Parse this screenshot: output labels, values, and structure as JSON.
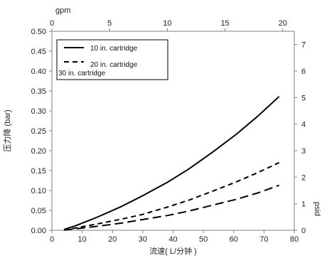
{
  "chart_data": {
    "type": "line",
    "title": "",
    "xlabel": "流速( L/分钟 )",
    "ylabel": "压力降 (bar)",
    "top_xlabel": "gpm",
    "right_ylabel": "psid",
    "xlim": [
      0,
      80
    ],
    "ylim": [
      0,
      0.5
    ],
    "top_xlim": [
      0,
      21
    ],
    "right_ylim": [
      0,
      7.5
    ],
    "x_ticks": [
      "0",
      "10",
      "20",
      "30",
      "40",
      "50",
      "60",
      "70",
      "80"
    ],
    "y_ticks": [
      "0.00",
      "0.05",
      "0.10",
      "0.15",
      "0.20",
      "0.25",
      "0.30",
      "0.35",
      "0.40",
      "0.45",
      "0.50"
    ],
    "top_x_ticks": [
      "0",
      "5",
      "10",
      "15",
      "20"
    ],
    "right_y_ticks": [
      "0",
      "1",
      "2",
      "3",
      "4",
      "5",
      "6",
      "7"
    ],
    "grid": false,
    "legend_position": "top-left",
    "series": [
      {
        "name": "10 in. cartridge",
        "style": "solid",
        "color": "#000000",
        "x": [
          4,
          8,
          15,
          23,
          30,
          38,
          45,
          53,
          61,
          68,
          75
        ],
        "y": [
          0.002,
          0.012,
          0.033,
          0.06,
          0.087,
          0.12,
          0.153,
          0.196,
          0.242,
          0.287,
          0.336
        ]
      },
      {
        "name": "20 in. cartridge",
        "style": "dashed",
        "color": "#000000",
        "x": [
          4,
          8,
          15,
          23,
          30,
          38,
          45,
          53,
          61,
          68,
          75
        ],
        "y": [
          0.001,
          0.006,
          0.016,
          0.028,
          0.04,
          0.058,
          0.075,
          0.098,
          0.122,
          0.145,
          0.17
        ]
      },
      {
        "name": "30 in. cartridge",
        "style": "long-dashed",
        "color": "#000000",
        "x": [
          4,
          8,
          15,
          23,
          30,
          38,
          45,
          53,
          61,
          68,
          75
        ],
        "y": [
          0.0005,
          0.004,
          0.01,
          0.018,
          0.027,
          0.037,
          0.048,
          0.063,
          0.078,
          0.094,
          0.113
        ]
      }
    ]
  }
}
